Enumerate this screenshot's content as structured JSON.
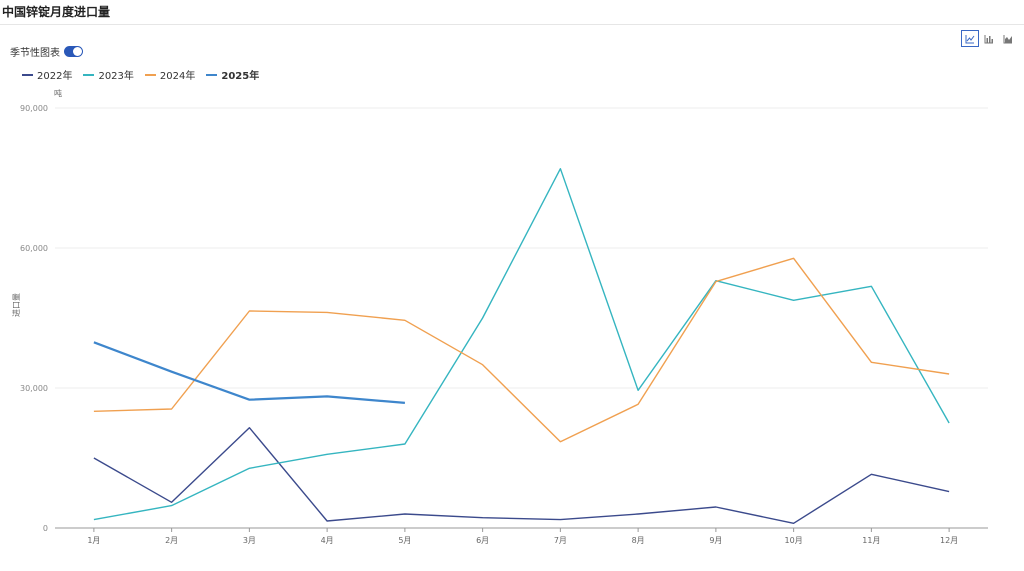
{
  "title": "中国锌锭月度进口量",
  "seasonal_toggle": {
    "label": "季节性图表",
    "on": true
  },
  "chart_type_buttons": [
    {
      "icon": "line-chart-icon",
      "active": true
    },
    {
      "icon": "bar-chart-icon",
      "active": false
    },
    {
      "icon": "area-chart-icon",
      "active": false
    }
  ],
  "chart_data": {
    "type": "line",
    "unit": "吨",
    "ylabel": "进口量",
    "categories": [
      "1月",
      "2月",
      "3月",
      "4月",
      "5月",
      "6月",
      "7月",
      "8月",
      "9月",
      "10月",
      "11月",
      "12月"
    ],
    "ylim": [
      0,
      90000
    ],
    "yticks": [
      0,
      30000,
      60000,
      90000
    ],
    "ytick_labels": [
      "0",
      "30,000",
      "60,000",
      "90,000"
    ],
    "grid": true,
    "legend_position": "top-left",
    "series": [
      {
        "name": "2022年",
        "color": "#3b4a8c",
        "bold": false,
        "values": [
          15000,
          5500,
          21500,
          1500,
          3000,
          2200,
          1800,
          3000,
          4500,
          1000,
          11500,
          7800
        ]
      },
      {
        "name": "2023年",
        "color": "#35b5c0",
        "bold": false,
        "values": [
          1800,
          4800,
          12800,
          15800,
          18000,
          45000,
          77000,
          29500,
          53000,
          48800,
          51800,
          22500
        ]
      },
      {
        "name": "2024年",
        "color": "#f0a050",
        "bold": false,
        "values": [
          25000,
          25500,
          46500,
          46200,
          44500,
          35000,
          18500,
          26500,
          52800,
          57800,
          35500,
          33000
        ]
      },
      {
        "name": "2025年",
        "color": "#3e86cc",
        "bold": true,
        "values": [
          39800,
          33500,
          27500,
          28200,
          26800,
          null,
          null,
          null,
          null,
          null,
          null,
          null
        ]
      }
    ]
  }
}
